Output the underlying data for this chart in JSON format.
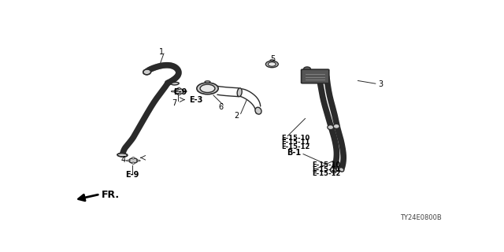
{
  "bg_color": "#ffffff",
  "line_color": "#2a2a2a",
  "part_number": "TY24E0800B",
  "fr_label": "FR.",
  "tube_lw": 5.5,
  "thin_lw": 1.0,
  "label_fs": 7,
  "bold_fs": 7,
  "leader_lw": 0.7,
  "parts": {
    "tube1_upper": {
      "x": [
        0.215,
        0.225,
        0.245,
        0.265,
        0.285,
        0.295,
        0.295,
        0.285,
        0.27
      ],
      "y": [
        0.22,
        0.205,
        0.19,
        0.185,
        0.19,
        0.21,
        0.235,
        0.26,
        0.275
      ]
    },
    "tube1_lower": {
      "x": [
        0.27,
        0.255,
        0.235,
        0.215,
        0.195,
        0.175,
        0.16,
        0.155
      ],
      "y": [
        0.275,
        0.31,
        0.36,
        0.43,
        0.5,
        0.565,
        0.6,
        0.625
      ]
    },
    "tube3_right": {
      "x": [
        0.71,
        0.715,
        0.72,
        0.725,
        0.73,
        0.735,
        0.74,
        0.745,
        0.75,
        0.755,
        0.755,
        0.75,
        0.745,
        0.74,
        0.73
      ],
      "y": [
        0.76,
        0.72,
        0.68,
        0.63,
        0.58,
        0.52,
        0.455,
        0.4,
        0.36,
        0.315,
        0.285,
        0.265,
        0.255,
        0.26,
        0.27
      ]
    }
  },
  "label1": [
    0.255,
    0.135,
    "1"
  ],
  "label3": [
    0.81,
    0.285,
    "3"
  ],
  "label4": [
    0.165,
    0.685,
    "4"
  ],
  "label5": [
    0.555,
    0.17,
    "5"
  ],
  "label6": [
    0.41,
    0.475,
    "6"
  ],
  "label7": [
    0.285,
    0.38,
    "7"
  ],
  "label2": [
    0.455,
    0.47,
    "2"
  ],
  "labelE3": [
    0.31,
    0.37,
    "E-3"
  ],
  "labelE9a": [
    0.345,
    0.32,
    "E-9"
  ],
  "labelE9b": [
    0.175,
    0.755,
    "E-9"
  ],
  "labelB1": [
    0.585,
    0.66,
    "B-1"
  ],
  "labelE1510a": [
    0.575,
    0.565,
    "E-15-10"
  ],
  "labelE1511a": [
    0.575,
    0.595,
    "E-15-11"
  ],
  "labelE1512a": [
    0.575,
    0.625,
    "E-15-12"
  ],
  "labelE1510b": [
    0.645,
    0.695,
    "E-15-10"
  ],
  "labelE1511b": [
    0.645,
    0.725,
    "E-15-11"
  ],
  "labelE1512b": [
    0.645,
    0.755,
    "E-15-12"
  ]
}
